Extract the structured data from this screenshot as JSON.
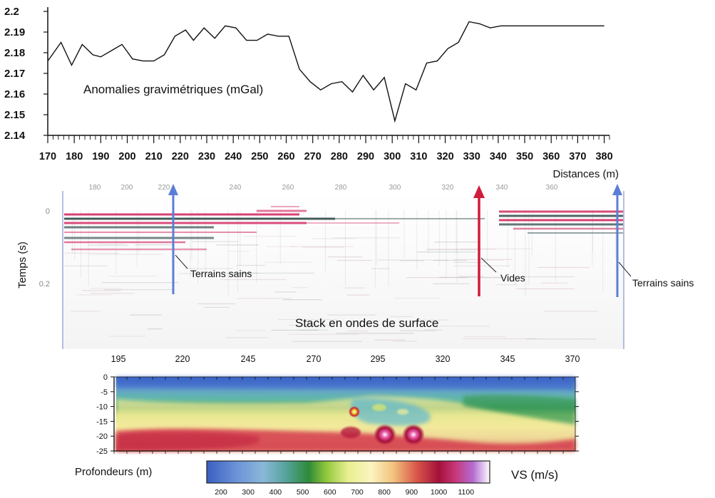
{
  "chart_data": [
    {
      "type": "line",
      "title": "Anomalies gravimétriques (mGal)",
      "xlabel": "Distances (m)",
      "ylabel": "",
      "xlim": [
        170,
        382
      ],
      "ylim": [
        2.14,
        2.2
      ],
      "x_ticks": [
        170,
        180,
        190,
        200,
        210,
        220,
        230,
        240,
        250,
        260,
        270,
        280,
        290,
        300,
        310,
        320,
        330,
        340,
        350,
        360,
        370,
        380
      ],
      "y_ticks": [
        2.14,
        2.15,
        2.16,
        2.17,
        2.18,
        2.19,
        2.2
      ],
      "y_tick_labels": [
        "2.14",
        "2.15",
        "2.16",
        "2.17",
        "2.18",
        "2.19",
        "2.2"
      ],
      "grid": false,
      "series": [
        {
          "x": [
            170,
            175,
            179,
            183,
            187,
            190,
            194,
            198,
            202,
            206,
            210,
            214,
            218,
            222,
            225,
            229,
            233,
            237,
            241,
            245,
            249,
            253,
            257,
            261,
            265,
            269,
            273,
            277,
            281,
            285,
            289,
            293,
            297,
            301,
            305,
            309,
            313,
            317,
            321,
            325,
            329,
            333,
            337,
            341,
            345,
            349,
            353,
            357,
            361,
            365,
            369,
            373,
            377,
            380
          ],
          "values": [
            2.176,
            2.185,
            2.174,
            2.184,
            2.179,
            2.178,
            2.181,
            2.184,
            2.177,
            2.176,
            2.176,
            2.179,
            2.188,
            2.191,
            2.186,
            2.192,
            2.187,
            2.193,
            2.192,
            2.186,
            2.186,
            2.189,
            2.188,
            2.188,
            2.172,
            2.166,
            2.162,
            2.165,
            2.166,
            2.161,
            2.169,
            2.162,
            2.168,
            2.147,
            2.165,
            2.162,
            2.175,
            2.176,
            2.182,
            2.185,
            2.195,
            2.194,
            2.192,
            2.193,
            2.193,
            2.193,
            2.193,
            2.193,
            2.193,
            2.193,
            2.193,
            2.193,
            2.193,
            2.193
          ]
        }
      ]
    },
    {
      "type": "heatmap",
      "title": "Stack en ondes de surface",
      "ylabel": "Temps (s)",
      "x_ticks_top": [
        "180",
        "200",
        "220",
        "240",
        "260",
        "280",
        "300",
        "320",
        "340",
        "360"
      ],
      "y_ticks": [
        "0",
        "0.2"
      ],
      "x_ticks_bottom": [
        "195",
        "220",
        "245",
        "270",
        "295",
        "320",
        "345",
        "370"
      ],
      "annotations": [
        "Terrains sains",
        "Vides",
        "Terrains sains"
      ],
      "colors": {
        "positive": "#d0205a",
        "negative": "#2e4a4a",
        "arrow_blue": "#5b7fd6",
        "arrow_red": "#d01c3c"
      }
    },
    {
      "type": "heatmap",
      "ylabel": "Profondeurs (m)",
      "y_ticks": [
        "0",
        "-5",
        "-10",
        "-15",
        "-20",
        "-25"
      ],
      "colorbar": {
        "label": "VS (m/s)",
        "ticks": [
          "200",
          "300",
          "400",
          "500",
          "600",
          "700",
          "800",
          "900",
          "1000",
          "1100"
        ],
        "colors": [
          "#4a6fc8",
          "#7fb0dd",
          "#4aa28a",
          "#2f8f3a",
          "#d8ee86",
          "#fbf3a8",
          "#f0b868",
          "#d44a4a",
          "#a01040",
          "#c060c0",
          "#ffffff"
        ]
      }
    }
  ]
}
